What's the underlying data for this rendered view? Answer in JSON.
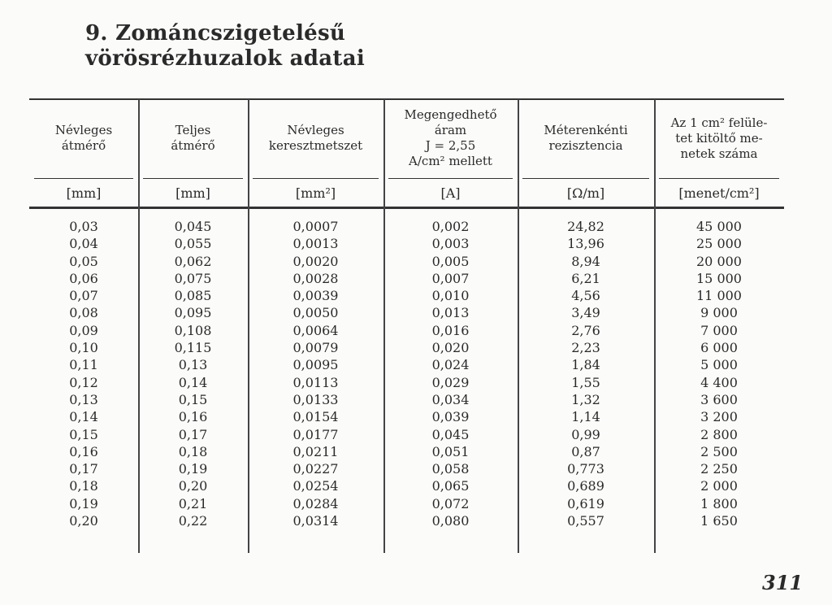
{
  "title": {
    "line1": "9. Zománcszigetelésű",
    "line2": "vörösrézhuzalok adatai"
  },
  "table": {
    "columns": [
      {
        "header": [
          "Névleges",
          "átmérő"
        ],
        "unit": "[mm]"
      },
      {
        "header": [
          "Teljes",
          "átmérő"
        ],
        "unit": "[mm]"
      },
      {
        "header": [
          "Névleges",
          "keresztmetszet"
        ],
        "unit": "[mm²]"
      },
      {
        "header": [
          "Megengedhető",
          "áram",
          "J = 2,55",
          "A/cm² mellett"
        ],
        "unit": "[A]"
      },
      {
        "header": [
          "Méterenkénti",
          "rezisztencia"
        ],
        "unit": "[Ω/m]"
      },
      {
        "header": [
          "Az 1 cm² felüle-",
          "tet kitöltő me-",
          "netek száma"
        ],
        "unit": "[menet/cm²]"
      }
    ],
    "rows": [
      [
        "0,03",
        "0,045",
        "0,0007",
        "0,002",
        "24,82",
        "45 000"
      ],
      [
        "0,04",
        "0,055",
        "0,0013",
        "0,003",
        "13,96",
        "25 000"
      ],
      [
        "0,05",
        "0,062",
        "0,0020",
        "0,005",
        "8,94",
        "20 000"
      ],
      [
        "0,06",
        "0,075",
        "0,0028",
        "0,007",
        "6,21",
        "15 000"
      ],
      [
        "0,07",
        "0,085",
        "0,0039",
        "0,010",
        "4,56",
        "11 000"
      ],
      [
        "0,08",
        "0,095",
        "0,0050",
        "0,013",
        "3,49",
        "9 000"
      ],
      [
        "0,09",
        "0,108",
        "0,0064",
        "0,016",
        "2,76",
        "7 000"
      ],
      [
        "0,10",
        "0,115",
        "0,0079",
        "0,020",
        "2,23",
        "6 000"
      ],
      [
        "0,11",
        "0,13",
        "0,0095",
        "0,024",
        "1,84",
        "5 000"
      ],
      [
        "0,12",
        "0,14",
        "0,0113",
        "0,029",
        "1,55",
        "4 400"
      ],
      [
        "0,13",
        "0,15",
        "0,0133",
        "0,034",
        "1,32",
        "3 600"
      ],
      [
        "0,14",
        "0,16",
        "0,0154",
        "0,039",
        "1,14",
        "3 200"
      ],
      [
        "0,15",
        "0,17",
        "0,0177",
        "0,045",
        "0,99",
        "2 800"
      ],
      [
        "0,16",
        "0,18",
        "0,0211",
        "0,051",
        "0,87",
        "2 500"
      ],
      [
        "0,17",
        "0,19",
        "0,0227",
        "0,058",
        "0,773",
        "2 250"
      ],
      [
        "0,18",
        "0,20",
        "0,0254",
        "0,065",
        "0,689",
        "2 000"
      ],
      [
        "0,19",
        "0,21",
        "0,0284",
        "0,072",
        "0,619",
        "1 800"
      ],
      [
        "0,20",
        "0,22",
        "0,0314",
        "0,080",
        "0,557",
        "1 650"
      ]
    ]
  },
  "page_number": "311"
}
